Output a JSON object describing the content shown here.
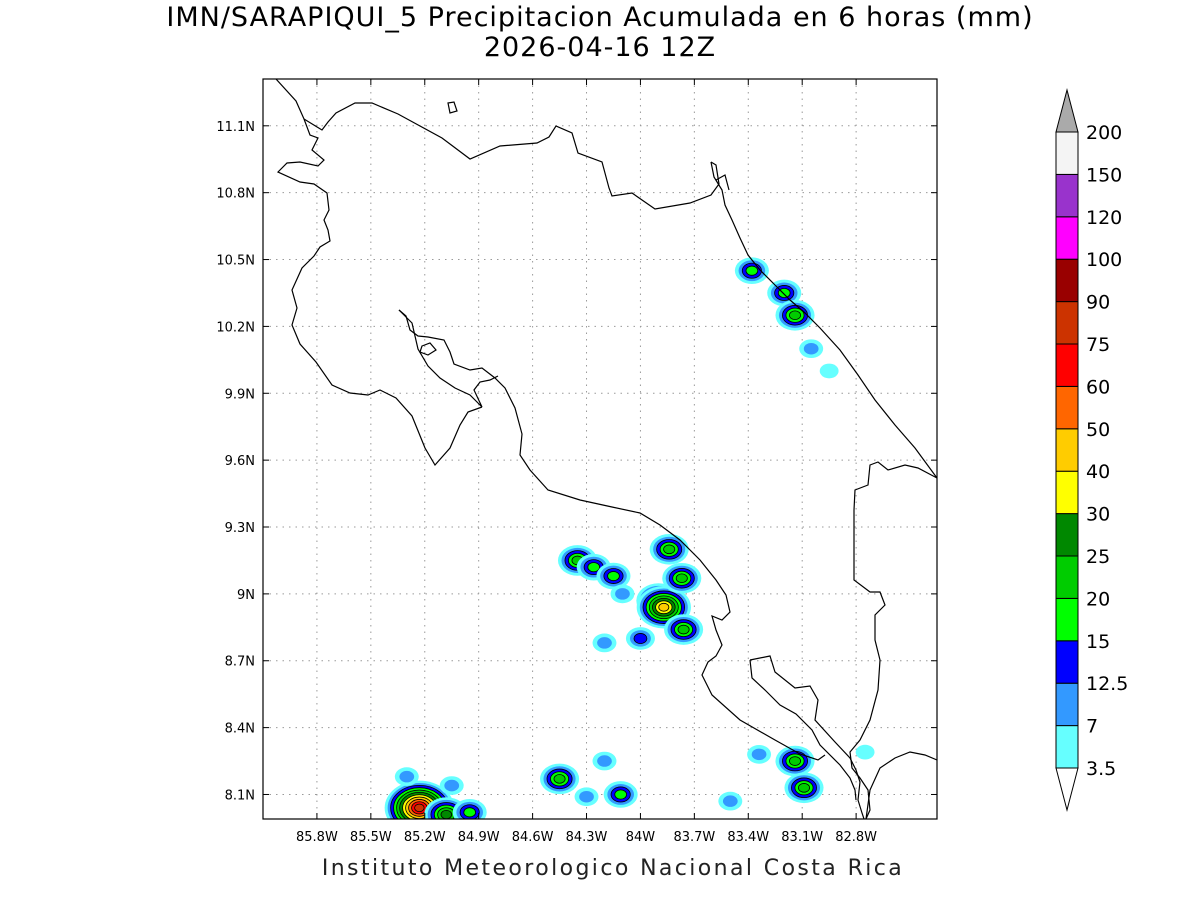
{
  "title_line1": "IMN/SARAPIQUI_5 Precipitacion Acumulada en 6 horas (mm)",
  "title_line2": "2026-04-16 12Z",
  "footer": "Instituto Meteorologico Nacional Costa Rica",
  "map": {
    "lon_range": [
      -86.1,
      -82.35
    ],
    "lat_range": [
      7.99,
      11.31
    ],
    "lon_ticks": [
      {
        "value": -85.8,
        "label": "85.8W"
      },
      {
        "value": -85.5,
        "label": "85.5W"
      },
      {
        "value": -85.2,
        "label": "85.2W"
      },
      {
        "value": -84.9,
        "label": "84.9W"
      },
      {
        "value": -84.6,
        "label": "84.6W"
      },
      {
        "value": -84.3,
        "label": "84.3W"
      },
      {
        "value": -84.0,
        "label": "84W"
      },
      {
        "value": -83.7,
        "label": "83.7W"
      },
      {
        "value": -83.4,
        "label": "83.4W"
      },
      {
        "value": -83.1,
        "label": "83.1W"
      },
      {
        "value": -82.8,
        "label": "82.8W"
      }
    ],
    "lat_ticks": [
      {
        "value": 11.1,
        "label": "11.1N"
      },
      {
        "value": 10.8,
        "label": "10.8N"
      },
      {
        "value": 10.5,
        "label": "10.5N"
      },
      {
        "value": 10.2,
        "label": "10.2N"
      },
      {
        "value": 9.9,
        "label": "9.9N"
      },
      {
        "value": 9.6,
        "label": "9.6N"
      },
      {
        "value": 9.3,
        "label": "9.3N"
      },
      {
        "value": 9.0,
        "label": "9N"
      },
      {
        "value": 8.7,
        "label": "8.7N"
      },
      {
        "value": 8.4,
        "label": "8.4N"
      },
      {
        "value": 8.1,
        "label": "8.1N"
      }
    ]
  },
  "colorbar": {
    "labels": [
      "3.5",
      "7",
      "12.5",
      "15",
      "20",
      "25",
      "30",
      "40",
      "50",
      "60",
      "75",
      "90",
      "100",
      "120",
      "150",
      "200"
    ],
    "colors": [
      "#ffffff",
      "#66ffff",
      "#3399ff",
      "#0000ff",
      "#00ff00",
      "#00cc00",
      "#008800",
      "#ffff00",
      "#ffcc00",
      "#ff6600",
      "#ff0000",
      "#cc3300",
      "#990000",
      "#ff00ff",
      "#9933cc",
      "#f4f4f4",
      "#aaaaaa"
    ]
  },
  "precip_cells": [
    {
      "lon": -83.38,
      "lat": 10.45,
      "value": 15
    },
    {
      "lon": -83.2,
      "lat": 10.35,
      "value": 15
    },
    {
      "lon": -83.14,
      "lat": 10.25,
      "value": 20
    },
    {
      "lon": -83.05,
      "lat": 10.1,
      "value": 7
    },
    {
      "lon": -82.95,
      "lat": 10.0,
      "value": 3.5
    },
    {
      "lon": -84.35,
      "lat": 9.15,
      "value": 20
    },
    {
      "lon": -84.26,
      "lat": 9.12,
      "value": 15
    },
    {
      "lon": -84.15,
      "lat": 9.08,
      "value": 15
    },
    {
      "lon": -84.1,
      "lat": 9.0,
      "value": 7
    },
    {
      "lon": -83.84,
      "lat": 9.2,
      "value": 20
    },
    {
      "lon": -83.9,
      "lat": 8.97,
      "value": 25
    },
    {
      "lon": -83.87,
      "lat": 8.94,
      "value": 40
    },
    {
      "lon": -83.77,
      "lat": 9.07,
      "value": 20
    },
    {
      "lon": -83.76,
      "lat": 8.84,
      "value": 20
    },
    {
      "lon": -84.0,
      "lat": 8.8,
      "value": 12.5
    },
    {
      "lon": -84.2,
      "lat": 8.78,
      "value": 7
    },
    {
      "lon": -84.45,
      "lat": 8.17,
      "value": 20
    },
    {
      "lon": -84.11,
      "lat": 8.1,
      "value": 15
    },
    {
      "lon": -84.2,
      "lat": 8.25,
      "value": 7
    },
    {
      "lon": -84.3,
      "lat": 8.09,
      "value": 7
    },
    {
      "lon": -83.5,
      "lat": 8.07,
      "value": 7
    },
    {
      "lon": -83.14,
      "lat": 8.25,
      "value": 20
    },
    {
      "lon": -83.09,
      "lat": 8.13,
      "value": 20
    },
    {
      "lon": -83.34,
      "lat": 8.28,
      "value": 7
    },
    {
      "lon": -85.23,
      "lat": 8.04,
      "value": 75
    },
    {
      "lon": -85.08,
      "lat": 8.01,
      "value": 25
    },
    {
      "lon": -84.95,
      "lat": 8.02,
      "value": 15
    },
    {
      "lon": -85.3,
      "lat": 8.18,
      "value": 7
    },
    {
      "lon": -85.05,
      "lat": 8.14,
      "value": 7
    },
    {
      "lon": -82.75,
      "lat": 8.29,
      "value": 3.5
    }
  ]
}
